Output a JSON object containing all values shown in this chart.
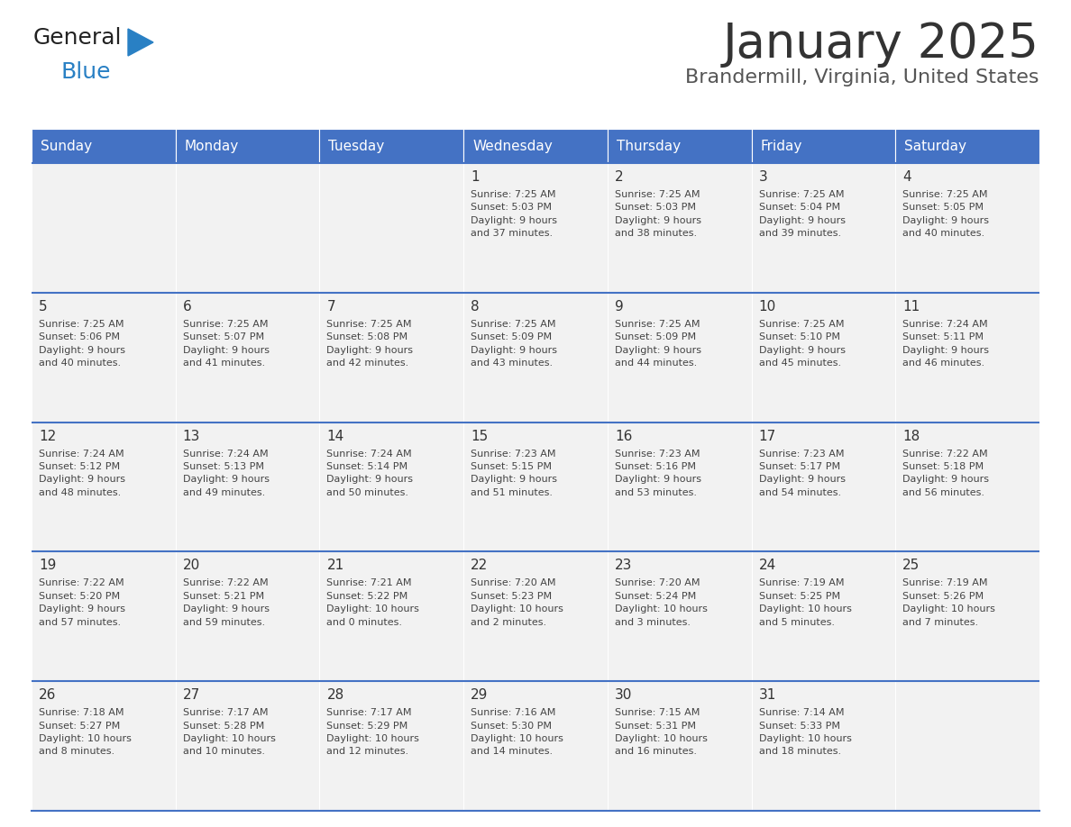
{
  "title": "January 2025",
  "subtitle": "Brandermill, Virginia, United States",
  "header_color": "#4472C4",
  "header_text_color": "#FFFFFF",
  "cell_bg": "#F2F2F2",
  "text_color": "#333333",
  "line_color": "#4472C4",
  "days_of_week": [
    "Sunday",
    "Monday",
    "Tuesday",
    "Wednesday",
    "Thursday",
    "Friday",
    "Saturday"
  ],
  "weeks": [
    [
      {
        "day": "",
        "info": ""
      },
      {
        "day": "",
        "info": ""
      },
      {
        "day": "",
        "info": ""
      },
      {
        "day": "1",
        "info": "Sunrise: 7:25 AM\nSunset: 5:03 PM\nDaylight: 9 hours\nand 37 minutes."
      },
      {
        "day": "2",
        "info": "Sunrise: 7:25 AM\nSunset: 5:03 PM\nDaylight: 9 hours\nand 38 minutes."
      },
      {
        "day": "3",
        "info": "Sunrise: 7:25 AM\nSunset: 5:04 PM\nDaylight: 9 hours\nand 39 minutes."
      },
      {
        "day": "4",
        "info": "Sunrise: 7:25 AM\nSunset: 5:05 PM\nDaylight: 9 hours\nand 40 minutes."
      }
    ],
    [
      {
        "day": "5",
        "info": "Sunrise: 7:25 AM\nSunset: 5:06 PM\nDaylight: 9 hours\nand 40 minutes."
      },
      {
        "day": "6",
        "info": "Sunrise: 7:25 AM\nSunset: 5:07 PM\nDaylight: 9 hours\nand 41 minutes."
      },
      {
        "day": "7",
        "info": "Sunrise: 7:25 AM\nSunset: 5:08 PM\nDaylight: 9 hours\nand 42 minutes."
      },
      {
        "day": "8",
        "info": "Sunrise: 7:25 AM\nSunset: 5:09 PM\nDaylight: 9 hours\nand 43 minutes."
      },
      {
        "day": "9",
        "info": "Sunrise: 7:25 AM\nSunset: 5:09 PM\nDaylight: 9 hours\nand 44 minutes."
      },
      {
        "day": "10",
        "info": "Sunrise: 7:25 AM\nSunset: 5:10 PM\nDaylight: 9 hours\nand 45 minutes."
      },
      {
        "day": "11",
        "info": "Sunrise: 7:24 AM\nSunset: 5:11 PM\nDaylight: 9 hours\nand 46 minutes."
      }
    ],
    [
      {
        "day": "12",
        "info": "Sunrise: 7:24 AM\nSunset: 5:12 PM\nDaylight: 9 hours\nand 48 minutes."
      },
      {
        "day": "13",
        "info": "Sunrise: 7:24 AM\nSunset: 5:13 PM\nDaylight: 9 hours\nand 49 minutes."
      },
      {
        "day": "14",
        "info": "Sunrise: 7:24 AM\nSunset: 5:14 PM\nDaylight: 9 hours\nand 50 minutes."
      },
      {
        "day": "15",
        "info": "Sunrise: 7:23 AM\nSunset: 5:15 PM\nDaylight: 9 hours\nand 51 minutes."
      },
      {
        "day": "16",
        "info": "Sunrise: 7:23 AM\nSunset: 5:16 PM\nDaylight: 9 hours\nand 53 minutes."
      },
      {
        "day": "17",
        "info": "Sunrise: 7:23 AM\nSunset: 5:17 PM\nDaylight: 9 hours\nand 54 minutes."
      },
      {
        "day": "18",
        "info": "Sunrise: 7:22 AM\nSunset: 5:18 PM\nDaylight: 9 hours\nand 56 minutes."
      }
    ],
    [
      {
        "day": "19",
        "info": "Sunrise: 7:22 AM\nSunset: 5:20 PM\nDaylight: 9 hours\nand 57 minutes."
      },
      {
        "day": "20",
        "info": "Sunrise: 7:22 AM\nSunset: 5:21 PM\nDaylight: 9 hours\nand 59 minutes."
      },
      {
        "day": "21",
        "info": "Sunrise: 7:21 AM\nSunset: 5:22 PM\nDaylight: 10 hours\nand 0 minutes."
      },
      {
        "day": "22",
        "info": "Sunrise: 7:20 AM\nSunset: 5:23 PM\nDaylight: 10 hours\nand 2 minutes."
      },
      {
        "day": "23",
        "info": "Sunrise: 7:20 AM\nSunset: 5:24 PM\nDaylight: 10 hours\nand 3 minutes."
      },
      {
        "day": "24",
        "info": "Sunrise: 7:19 AM\nSunset: 5:25 PM\nDaylight: 10 hours\nand 5 minutes."
      },
      {
        "day": "25",
        "info": "Sunrise: 7:19 AM\nSunset: 5:26 PM\nDaylight: 10 hours\nand 7 minutes."
      }
    ],
    [
      {
        "day": "26",
        "info": "Sunrise: 7:18 AM\nSunset: 5:27 PM\nDaylight: 10 hours\nand 8 minutes."
      },
      {
        "day": "27",
        "info": "Sunrise: 7:17 AM\nSunset: 5:28 PM\nDaylight: 10 hours\nand 10 minutes."
      },
      {
        "day": "28",
        "info": "Sunrise: 7:17 AM\nSunset: 5:29 PM\nDaylight: 10 hours\nand 12 minutes."
      },
      {
        "day": "29",
        "info": "Sunrise: 7:16 AM\nSunset: 5:30 PM\nDaylight: 10 hours\nand 14 minutes."
      },
      {
        "day": "30",
        "info": "Sunrise: 7:15 AM\nSunset: 5:31 PM\nDaylight: 10 hours\nand 16 minutes."
      },
      {
        "day": "31",
        "info": "Sunrise: 7:14 AM\nSunset: 5:33 PM\nDaylight: 10 hours\nand 18 minutes."
      },
      {
        "day": "",
        "info": ""
      }
    ]
  ],
  "logo_general_color": "#222222",
  "logo_blue_color": "#2980C4",
  "logo_triangle_color": "#2980C4"
}
